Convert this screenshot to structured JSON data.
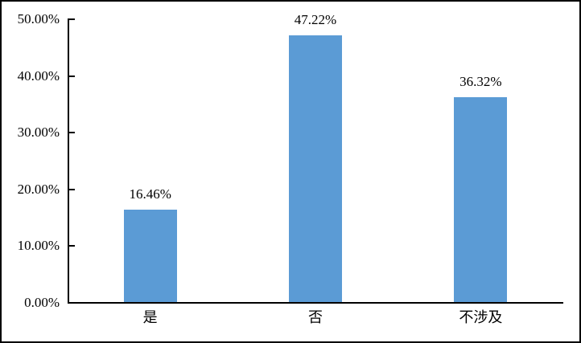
{
  "chart_data": {
    "type": "bar",
    "title": "",
    "xlabel": "",
    "ylabel": "",
    "categories": [
      "是",
      "否",
      "不涉及"
    ],
    "values": [
      16.46,
      47.22,
      36.32
    ],
    "value_labels": [
      "16.46%",
      "47.22%",
      "36.32%"
    ],
    "series_name": "",
    "ylim": [
      0,
      50
    ],
    "ytick_values": [
      0,
      10,
      20,
      30,
      40,
      50
    ],
    "ytick_labels": [
      "0.00%",
      "10.00%",
      "20.00%",
      "30.00%",
      "40.00%",
      "50.00%"
    ],
    "grid": false,
    "legend_position": "none",
    "bar_color": "#5B9BD5",
    "axis_color": "#000000",
    "frame_border_color": "#000000",
    "background_color": "#FFFFFF"
  }
}
